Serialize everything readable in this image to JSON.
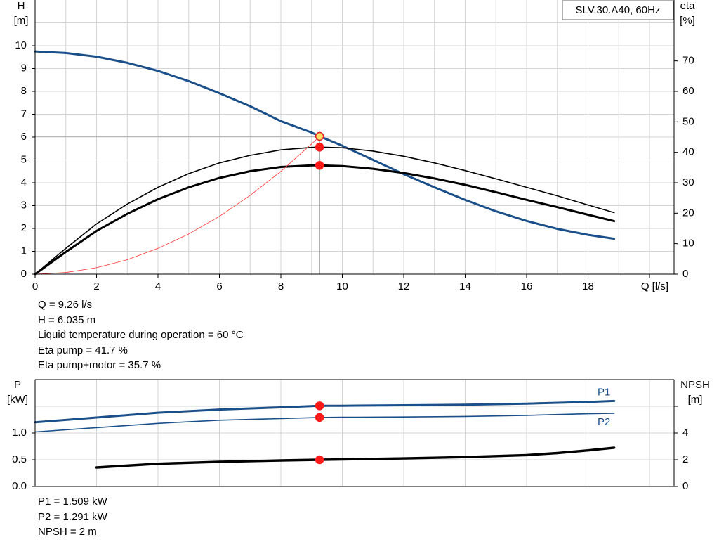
{
  "chart_data": [
    {
      "type": "line",
      "title": "SLV.30.A40, 60Hz",
      "xlabel": "Q [l/s]",
      "ylabel": [
        "H",
        "[m]"
      ],
      "y2label": [
        "eta",
        "[%]"
      ],
      "xlim": [
        0,
        20.8
      ],
      "ylim": [
        0,
        12
      ],
      "y2lim": [
        0,
        90
      ],
      "xticks": [
        0,
        2,
        4,
        6,
        8,
        10,
        12,
        14,
        16,
        18
      ],
      "yticks": [
        0,
        1,
        2,
        3,
        4,
        5,
        6,
        7,
        8,
        9,
        10
      ],
      "y2ticks": [
        0,
        10,
        20,
        30,
        40,
        50,
        60,
        70
      ],
      "grid": true,
      "legend_box_position": "top-right",
      "series": [
        {
          "name": "",
          "axis": "left",
          "color": "#1a4f8a",
          "x": [
            0,
            1,
            2,
            3,
            4,
            5,
            6,
            7,
            8,
            9,
            9.26,
            10,
            11,
            12,
            13,
            14,
            15,
            16,
            17,
            18,
            18.85
          ],
          "y": [
            9.75,
            9.68,
            9.52,
            9.25,
            8.9,
            8.45,
            7.92,
            7.35,
            6.7,
            6.2,
            6.035,
            5.62,
            5.0,
            4.38,
            3.8,
            3.25,
            2.75,
            2.33,
            1.98,
            1.72,
            1.55
          ]
        },
        {
          "name": "",
          "axis": "right",
          "color": "#000000",
          "width": 1.6,
          "x": [
            0,
            1,
            2,
            3,
            4,
            5,
            6,
            7,
            8,
            9,
            9.26,
            10,
            11,
            12,
            13,
            14,
            15,
            16,
            17,
            18,
            18.85
          ],
          "y": [
            0,
            8.5,
            16.5,
            23,
            28.5,
            33,
            36.5,
            39,
            40.8,
            41.6,
            41.7,
            41.5,
            40.4,
            38.7,
            36.5,
            34,
            31.3,
            28.5,
            25.7,
            22.7,
            20.2
          ]
        },
        {
          "name": "",
          "axis": "right",
          "color": "#000000",
          "width": 3,
          "x": [
            0,
            1,
            2,
            3,
            4,
            5,
            6,
            7,
            8,
            9,
            9.26,
            10,
            11,
            12,
            13,
            14,
            15,
            16,
            17,
            18,
            18.85
          ],
          "y": [
            0,
            7.3,
            14.2,
            19.8,
            24.6,
            28.5,
            31.6,
            33.8,
            35.2,
            35.7,
            35.7,
            35.5,
            34.6,
            33.2,
            31.4,
            29.3,
            26.9,
            24.4,
            22,
            19.5,
            17.4
          ]
        },
        {
          "name": "",
          "axis": "left",
          "color": "#ff3030",
          "width": 0.8,
          "x": [
            0,
            1,
            2,
            3,
            4,
            5,
            6,
            7,
            8,
            9,
            9.26
          ],
          "y": [
            0,
            0.07,
            0.28,
            0.63,
            1.13,
            1.76,
            2.53,
            3.45,
            4.5,
            5.7,
            6.035
          ]
        }
      ],
      "operating_point": {
        "x": 9.26,
        "y": 6.035,
        "marks": [
          {
            "axis": "left",
            "y": 6.035,
            "style": "yellow"
          },
          {
            "axis": "right",
            "y": 41.7,
            "style": "red"
          },
          {
            "axis": "right",
            "y": 35.7,
            "style": "red"
          }
        ]
      }
    },
    {
      "type": "line",
      "xlim": [
        0,
        20.8
      ],
      "ylabel": [
        "P",
        "[kW]"
      ],
      "y2label": [
        "NPSH",
        "[m]"
      ],
      "ylim": [
        0,
        2.0
      ],
      "y2lim": [
        0,
        8
      ],
      "yticks": [
        0.0,
        0.5,
        1.0
      ],
      "yticklabels": [
        "0.0",
        "0.5",
        "1.0"
      ],
      "y2ticks": [
        0,
        2,
        4
      ],
      "y2ticks_unlabeled": [
        6
      ],
      "grid": true,
      "series": [
        {
          "name": "P1",
          "axis": "left",
          "color": "#1a4f8a",
          "width": 3,
          "x": [
            0,
            2,
            4,
            6,
            8,
            9.26,
            10,
            12,
            14,
            16,
            18,
            18.85
          ],
          "y": [
            1.2,
            1.29,
            1.38,
            1.44,
            1.48,
            1.509,
            1.51,
            1.52,
            1.53,
            1.55,
            1.58,
            1.6
          ]
        },
        {
          "name": "P2",
          "axis": "left",
          "color": "#1a4f8a",
          "width": 1.6,
          "x": [
            0,
            2,
            4,
            6,
            8,
            9.26,
            10,
            12,
            14,
            16,
            18,
            18.85
          ],
          "y": [
            1.02,
            1.1,
            1.18,
            1.24,
            1.27,
            1.291,
            1.295,
            1.3,
            1.31,
            1.33,
            1.36,
            1.37
          ]
        },
        {
          "name": "",
          "axis": "right",
          "color": "#000000",
          "width": 3.4,
          "x": [
            2,
            4,
            6,
            8,
            9.26,
            10,
            12,
            14,
            16,
            17,
            18,
            18.85
          ],
          "y": [
            1.42,
            1.7,
            1.85,
            1.95,
            2.0,
            2.02,
            2.1,
            2.2,
            2.35,
            2.5,
            2.7,
            2.9
          ]
        }
      ],
      "operating_point": {
        "x": 9.26,
        "marks": [
          {
            "axis": "left",
            "y": 1.509,
            "style": "red"
          },
          {
            "axis": "left",
            "y": 1.291,
            "style": "red"
          },
          {
            "axis": "right",
            "y": 2.0,
            "style": "red"
          }
        ]
      }
    }
  ],
  "readout_top": {
    "q": "Q = 9.26 l/s",
    "h": "H = 6.035 m",
    "temp": "Liquid temperature during operation = 60 °C",
    "eta_pump": "Eta pump = 41.7 %",
    "eta_pump_motor": "Eta pump+motor = 35.7 %"
  },
  "readout_bottom": {
    "p1": "P1 = 1.509 kW",
    "p2": "P2 = 1.291 kW",
    "npsh": "NPSH = 2 m"
  }
}
